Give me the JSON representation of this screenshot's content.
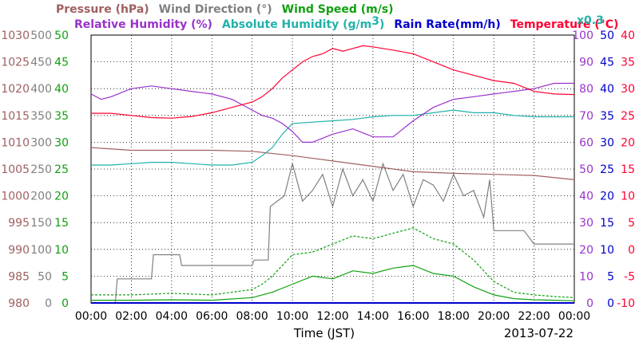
{
  "chart_data": {
    "type": "line",
    "date": "2013-07-22",
    "xlabel": "Time (JST)",
    "x_ticks": [
      "00:00",
      "02:00",
      "04:00",
      "06:00",
      "08:00",
      "10:00",
      "12:00",
      "14:00",
      "16:00",
      "18:00",
      "20:00",
      "22:00",
      "00:00"
    ],
    "legend": {
      "row1": [
        {
          "key": "pressure",
          "text": "Pressure (hPa)",
          "color": "#a06060"
        },
        {
          "key": "wind_dir",
          "text": "Wind Direction (°)",
          "color": "#808080"
        },
        {
          "key": "wind_speed",
          "text": "Wind Speed (m/s)",
          "color": "#10a010"
        }
      ],
      "row2": [
        {
          "key": "humidity",
          "text": "Relative Humidity (%)",
          "color": "#9932cc"
        },
        {
          "key": "abs_hum_a",
          "text": "Absolute Humidity (g/m",
          "color": "#20b2aa"
        },
        {
          "key": "abs_hum_sup",
          "text": "3",
          "color": "#20b2aa"
        },
        {
          "key": "abs_hum_b",
          "text": ")",
          "color": "#20b2aa"
        },
        {
          "key": "rain",
          "text": "Rain Rate(mm/h)",
          "color": "#0000cc"
        },
        {
          "key": "temp",
          "text": "Temperature (°C)",
          "color": "#ff0033"
        }
      ],
      "abs_scale": {
        "text": "x0.3",
        "color": "#20b2aa"
      }
    },
    "axes": {
      "pressure": {
        "ticks": [
          "980",
          "985",
          "990",
          "995",
          "1000",
          "1005",
          "1010",
          "1015",
          "1020",
          "1025",
          "1030"
        ],
        "color": "#a06060",
        "ylim": [
          980,
          1030
        ]
      },
      "wind_direction": {
        "ticks": [
          "0",
          "50",
          "100",
          "150",
          "200",
          "250",
          "300",
          "350",
          "400",
          "450",
          "500"
        ],
        "color": "#808080",
        "ylim": [
          0,
          500
        ]
      },
      "wind_speed": {
        "ticks": [
          "0",
          "5",
          "10",
          "15",
          "20",
          "25",
          "30",
          "35",
          "40",
          "45",
          "50"
        ],
        "color": "#10a010",
        "ylim": [
          0,
          50
        ]
      },
      "humidity": {
        "ticks": [
          "0",
          "10",
          "20",
          "30",
          "40",
          "50",
          "60",
          "70",
          "80",
          "90",
          "100"
        ],
        "color": "#9932cc",
        "ylim": [
          0,
          100
        ]
      },
      "rain": {
        "ticks": [
          "0",
          "5",
          "10",
          "15",
          "20",
          "25",
          "30",
          "35",
          "40",
          "45",
          "50"
        ],
        "color": "#0000cc",
        "ylim": [
          0,
          50
        ]
      },
      "temperature": {
        "ticks": [
          "-10",
          "-5",
          "0",
          "5",
          "10",
          "15",
          "20",
          "25",
          "30",
          "35",
          "40"
        ],
        "color": "#ff0033",
        "ylim": [
          -10,
          40
        ]
      }
    },
    "series": [
      {
        "key": "temp",
        "color": "#ff0033",
        "hours": [
          0,
          1,
          2,
          3,
          4,
          5,
          6,
          7,
          8,
          8.5,
          9,
          9.5,
          10,
          10.5,
          11,
          11.5,
          12,
          12.5,
          13,
          13.5,
          14,
          15,
          16,
          17,
          18,
          19,
          20,
          21,
          22,
          23,
          24
        ],
        "values": [
          25.4,
          25.4,
          25.0,
          24.6,
          24.5,
          24.8,
          25.5,
          26.5,
          27.5,
          28.5,
          30.0,
          32.0,
          33.5,
          35.0,
          36.0,
          36.5,
          37.5,
          37.0,
          37.5,
          38.0,
          37.8,
          37.2,
          36.5,
          35.0,
          33.5,
          32.5,
          31.5,
          31.0,
          29.5,
          29.0,
          28.9
        ]
      },
      {
        "key": "humidity",
        "color": "#9932cc",
        "hours": [
          0,
          0.5,
          1,
          2,
          3,
          4,
          5,
          6,
          7,
          8,
          8.5,
          9,
          9.5,
          10,
          10.5,
          11,
          12,
          13,
          14,
          15,
          16,
          17,
          18,
          19,
          20,
          21,
          22,
          23,
          24
        ],
        "values": [
          78,
          76,
          77,
          80,
          81,
          80,
          79,
          78,
          76,
          72,
          70,
          69,
          67,
          64,
          60,
          60,
          63,
          65,
          62,
          62,
          68,
          73,
          76,
          77,
          78,
          79,
          80,
          82,
          82
        ]
      },
      {
        "key": "abs_hum",
        "color": "#20b2aa",
        "hours": [
          0,
          1,
          2,
          3,
          4,
          5,
          6,
          7,
          8,
          8.5,
          9,
          9.5,
          10,
          11,
          12,
          13,
          14,
          15,
          16,
          17,
          18,
          19,
          20,
          21,
          22,
          23,
          24
        ],
        "values": [
          51.5,
          51.5,
          52,
          52.5,
          52.5,
          52,
          51.5,
          51.5,
          52.5,
          55,
          58,
          63,
          67,
          67.5,
          68,
          68.5,
          69.5,
          70,
          70,
          71,
          72,
          71,
          71,
          70,
          69.5,
          69.5,
          69.5
        ]
      },
      {
        "key": "pressure",
        "color": "#a06060",
        "hours": [
          0,
          2,
          4,
          6,
          8,
          10,
          12,
          14,
          16,
          18,
          20,
          22,
          24
        ],
        "values": [
          1009,
          1008.5,
          1008.5,
          1008.5,
          1008.3,
          1007.5,
          1006.5,
          1005.5,
          1004.5,
          1004.2,
          1004.0,
          1003.8,
          1003.0
        ]
      },
      {
        "key": "wind_dir",
        "color": "#808080",
        "hours": [
          0,
          1.2,
          1.3,
          3,
          3.1,
          4.4,
          4.5,
          8,
          8.1,
          8.8,
          8.9,
          9.6,
          10,
          10.5,
          11,
          11.5,
          12,
          12.5,
          13,
          13.5,
          14,
          14.5,
          15,
          15.5,
          16,
          16.5,
          17,
          17.5,
          18,
          18.5,
          19,
          19.5,
          19.8,
          20,
          21.5,
          22,
          22.5,
          24
        ],
        "values": [
          0,
          0,
          45,
          45,
          90,
          90,
          70,
          70,
          80,
          80,
          180,
          200,
          260,
          190,
          210,
          240,
          180,
          250,
          200,
          230,
          190,
          260,
          210,
          240,
          180,
          230,
          220,
          190,
          240,
          200,
          210,
          160,
          230,
          135,
          135,
          110,
          110,
          110
        ]
      },
      {
        "key": "wind_speed",
        "color": "#10a010",
        "hours": [
          0,
          2,
          4,
          6,
          8,
          8.5,
          9,
          10,
          11,
          12,
          13,
          14,
          15,
          16,
          17,
          18,
          19,
          20,
          21,
          22,
          23,
          24
        ],
        "values": [
          0.5,
          0.5,
          0.6,
          0.5,
          1.0,
          1.5,
          2.0,
          3.5,
          5.0,
          4.5,
          6.0,
          5.5,
          6.5,
          7.0,
          5.5,
          5.0,
          3.0,
          1.5,
          0.8,
          0.6,
          0.5,
          0.4
        ]
      },
      {
        "key": "wind_gust",
        "color": "#10a010",
        "hours": [
          0,
          2,
          4,
          6,
          8,
          8.5,
          9,
          10,
          11,
          12,
          13,
          14,
          15,
          16,
          17,
          18,
          19,
          20,
          21,
          22,
          23,
          24
        ],
        "values": [
          1.5,
          1.5,
          1.8,
          1.5,
          2.5,
          3.5,
          5.0,
          9.0,
          9.5,
          11.0,
          12.5,
          12.0,
          13.0,
          14.0,
          12.0,
          11.0,
          8.0,
          4.0,
          2.0,
          1.5,
          1.2,
          1.0
        ]
      },
      {
        "key": "rain",
        "color": "#0000cc",
        "hours": [
          0,
          24
        ],
        "values": [
          0,
          0
        ]
      }
    ]
  }
}
